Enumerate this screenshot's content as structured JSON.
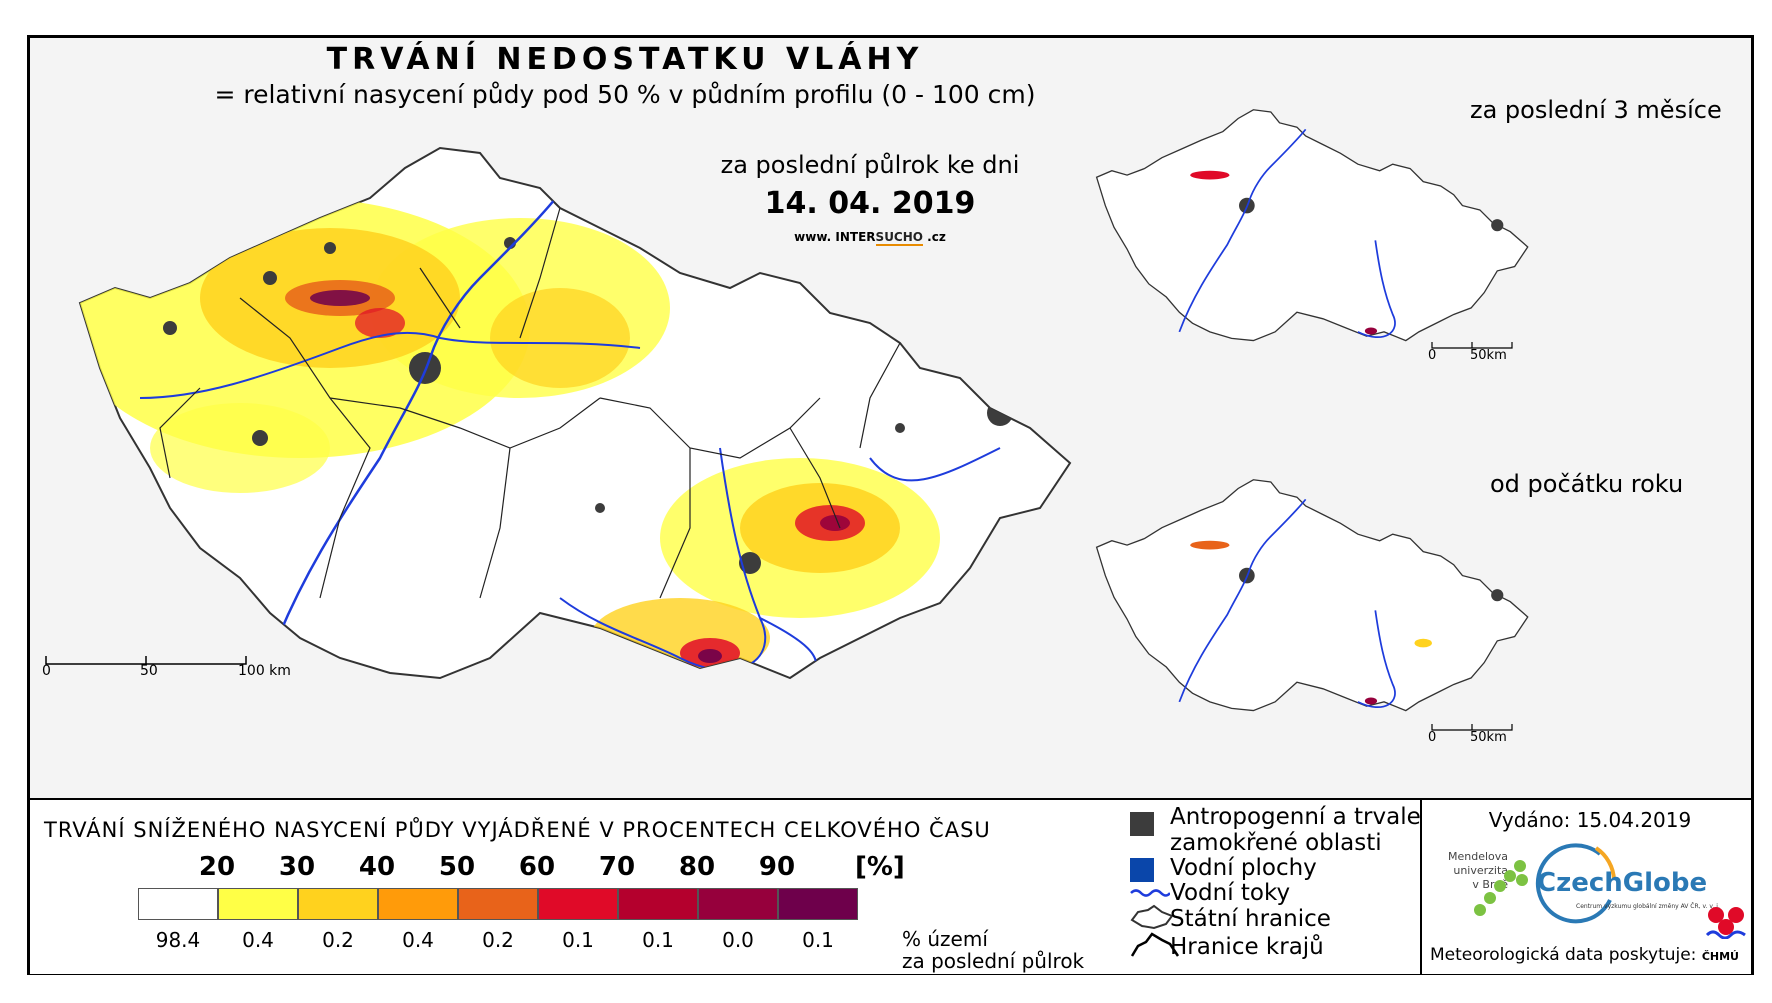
{
  "header": {
    "title": "TRVÁNÍ NEDOSTATKU VLÁHY",
    "subtitle": "= relativní nasycení půdy pod 50 % v půdním profilu (0 - 100 cm)",
    "period": "za poslední půlrok ke dni",
    "date": "14. 04. 2019",
    "website_prefix": "www.",
    "website_a": "INTER",
    "website_b": "SUCHO",
    "website_suffix": ".cz"
  },
  "insets": {
    "three_months_label": "za poslední 3 měsíce",
    "year_label": "od počátku roku",
    "scale_0": "0",
    "scale_50": "50km"
  },
  "main_scale": {
    "s0": "0",
    "s50": "50",
    "s100": "100 km"
  },
  "legend": {
    "title": "TRVÁNÍ SNÍŽENÉHO NASYCENÍ PŮDY VYJÁDŘENÉ V PROCENTECH CELKOVÉHO ČASU",
    "thresholds": [
      "20",
      "30",
      "40",
      "50",
      "60",
      "70",
      "80",
      "90"
    ],
    "unit": "[%]",
    "colors": [
      "#ffffff",
      "#ffff46",
      "#ffd21e",
      "#ff9b0a",
      "#e8631a",
      "#e00a28",
      "#b4002d",
      "#96003c",
      "#6e004b"
    ],
    "shares": [
      "98.4",
      "0.4",
      "0.2",
      "0.4",
      "0.2",
      "0.1",
      "0.1",
      "0.0",
      "0.1"
    ],
    "share_label_1": "% území",
    "share_label_2": "za poslední půlrok"
  },
  "symbols": {
    "anthropogenic_1": "Antropogenní a trvale",
    "anthropogenic_2": "zamokřené oblasti",
    "water_bodies": "Vodní plochy",
    "rivers": "Vodní toky",
    "state_border": "Státní hranice",
    "regions": "Hranice krajů",
    "colors": {
      "anthropogenic": "#3c3c3c",
      "water": "#0a46aa",
      "river": "#1e3cdc"
    }
  },
  "credits": {
    "issued": "Vydáno: 15.04.2019",
    "mendel_1": "Mendelova",
    "mendel_2": "univerzita",
    "mendel_3": "v Brně",
    "czechglobe": "CzechGlobe",
    "czechglobe_sub": "Centrum výzkumu globální změny AV ČR, v. v. i.",
    "meteo": "Meteorologická data poskytuje:",
    "chmu": "ČHMÚ"
  }
}
